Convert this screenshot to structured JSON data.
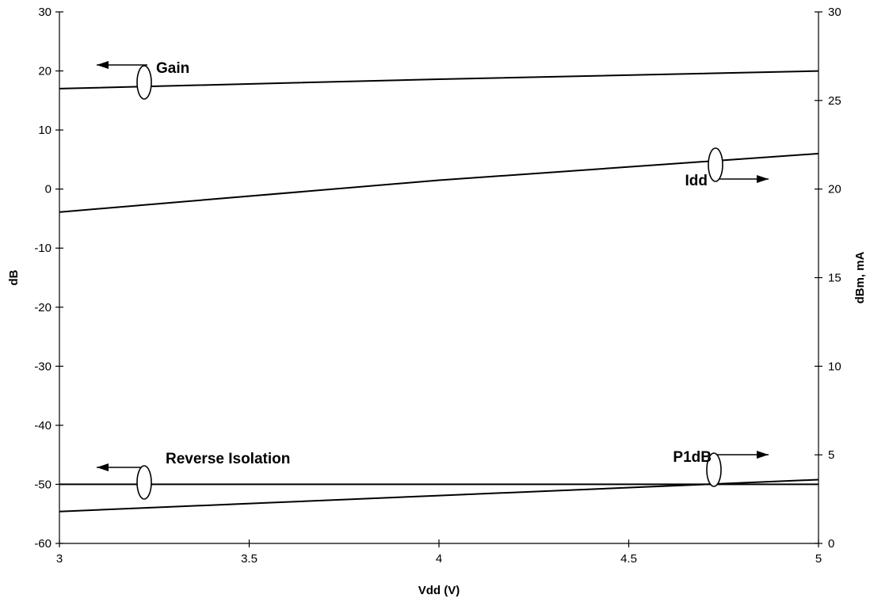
{
  "chart_data": {
    "type": "line",
    "title": "",
    "xlabel": "Vdd (V)",
    "ylabel_left": "dB",
    "ylabel_right": "dBm, mA",
    "xlim": [
      3,
      5
    ],
    "ylim_left": [
      -60,
      30
    ],
    "ylim_right": [
      0,
      30
    ],
    "x_ticks": [
      "3",
      "3.5",
      "4",
      "4.5",
      "5"
    ],
    "y_left_ticks": [
      "-60",
      "-50",
      "-40",
      "-30",
      "-20",
      "-10",
      "0",
      "10",
      "20",
      "30"
    ],
    "y_right_ticks": [
      "0",
      "5",
      "10",
      "15",
      "20",
      "25",
      "30"
    ],
    "grid": false,
    "series": [
      {
        "name": "Gain",
        "axis": "left",
        "x": [
          3,
          4,
          5
        ],
        "y": [
          17,
          18.6,
          20
        ]
      },
      {
        "name": "Idd",
        "axis": "right",
        "x": [
          3,
          4,
          5
        ],
        "y": [
          18.7,
          20.5,
          22
        ]
      },
      {
        "name": "Reverse Isolation",
        "axis": "left",
        "x": [
          3,
          4,
          5
        ],
        "y": [
          -50,
          -50,
          -50
        ]
      },
      {
        "name": "P1dB",
        "axis": "right",
        "x": [
          3,
          4,
          5
        ],
        "y": [
          1.8,
          2.7,
          3.6
        ]
      }
    ],
    "annotations": [
      {
        "label": "Gain",
        "series": "Gain",
        "arrow": "left"
      },
      {
        "label": "Idd",
        "series": "Idd",
        "arrow": "right"
      },
      {
        "label": "Reverse Isolation",
        "series": "Reverse Isolation",
        "arrow": "left"
      },
      {
        "label": "P1dB",
        "series": "P1dB",
        "arrow": "right"
      }
    ]
  }
}
